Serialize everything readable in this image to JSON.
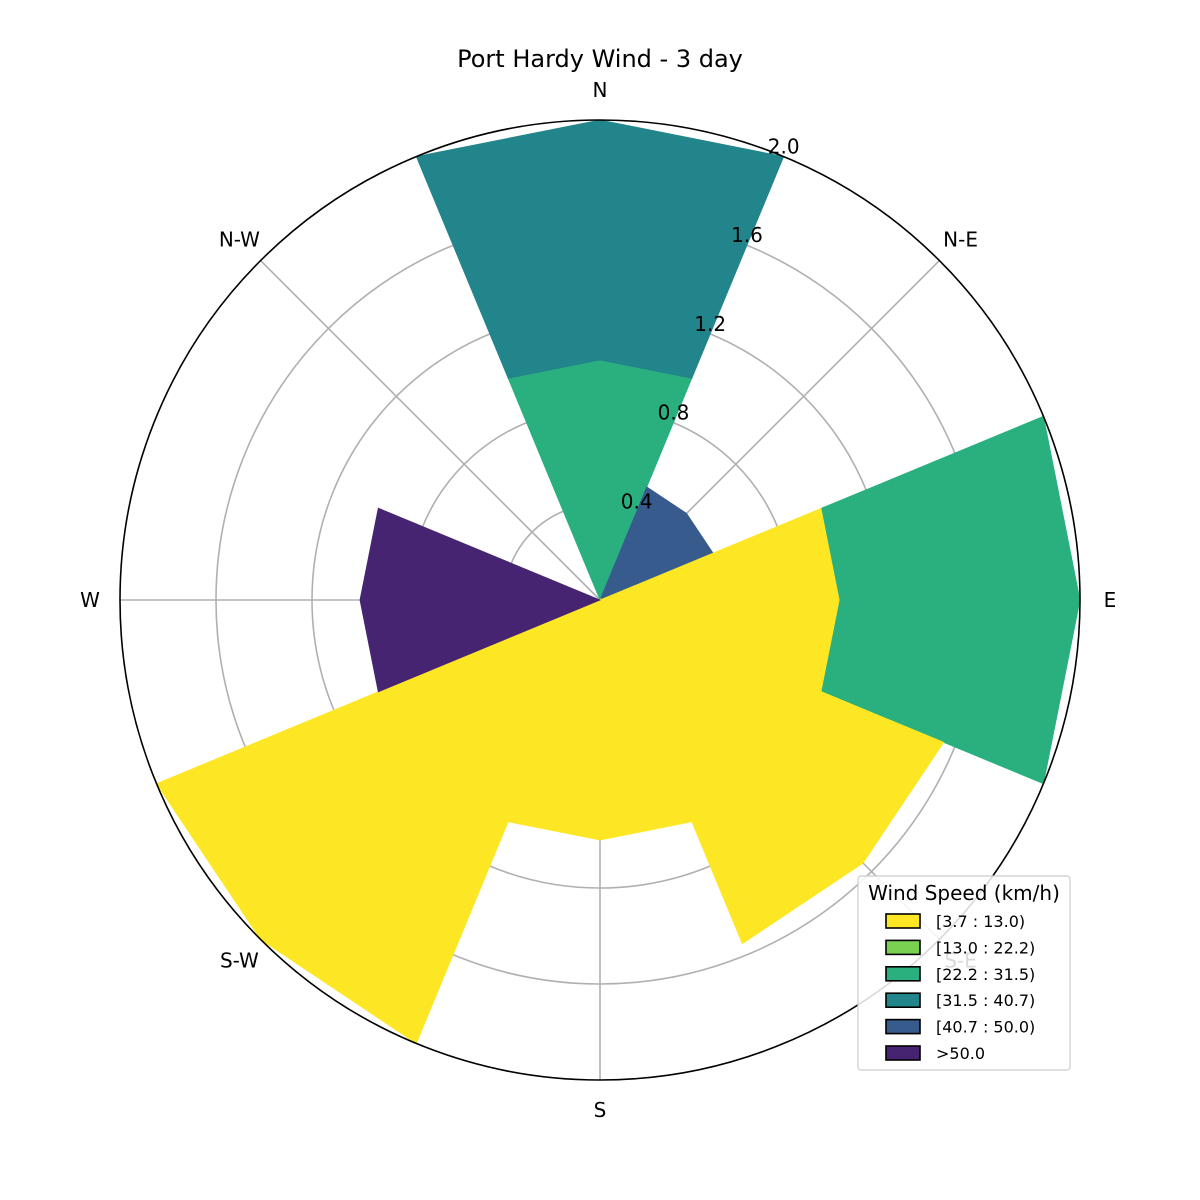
{
  "chart_data": {
    "type": "windrose",
    "title": "Port Hardy Wind - 3 day",
    "directions": [
      "N",
      "N-E",
      "E",
      "S-E",
      "S",
      "S-W",
      "W",
      "N-W"
    ],
    "radial_ticks": [
      "0.4",
      "0.8",
      "1.2",
      "1.6",
      "2.0"
    ],
    "radial_tick_values": [
      0.4,
      0.8,
      1.2,
      1.6,
      2.0
    ],
    "rmax": 2.0,
    "legend_title": "Wind Speed (km/h)",
    "legend_placement": "lower-right",
    "series": [
      {
        "name": "[3.7 : 13.0)",
        "color": "#fde725",
        "values": [
          0.0,
          0.0,
          1.0,
          1.55,
          1.0,
          2.0,
          0.0,
          0.0
        ]
      },
      {
        "name": "[13.0 : 22.2)",
        "color": "#7ad151",
        "values": [
          0.0,
          0.01,
          0.0,
          0.0,
          0.0,
          0.0,
          0.0,
          0.0
        ]
      },
      {
        "name": "[22.2 : 31.5)",
        "color": "#2ab07f",
        "values": [
          1.0,
          0.0,
          1.0,
          0.0,
          0.0,
          0.0,
          0.0,
          0.0
        ]
      },
      {
        "name": "[31.5 : 40.7)",
        "color": "#22858b",
        "values": [
          1.0,
          0.0,
          0.0,
          0.0,
          0.0,
          0.0,
          0.0,
          0.0
        ]
      },
      {
        "name": "[40.7 : 50.0)",
        "color": "#365b8c",
        "values": [
          0.0,
          0.5,
          0.0,
          0.0,
          0.0,
          0.0,
          0.0,
          0.0
        ]
      },
      {
        "name": ">50.0",
        "color": "#472472",
        "values": [
          0.0,
          0.0,
          0.0,
          0.0,
          0.0,
          0.0,
          1.0,
          0.0
        ]
      }
    ],
    "grid": true
  }
}
